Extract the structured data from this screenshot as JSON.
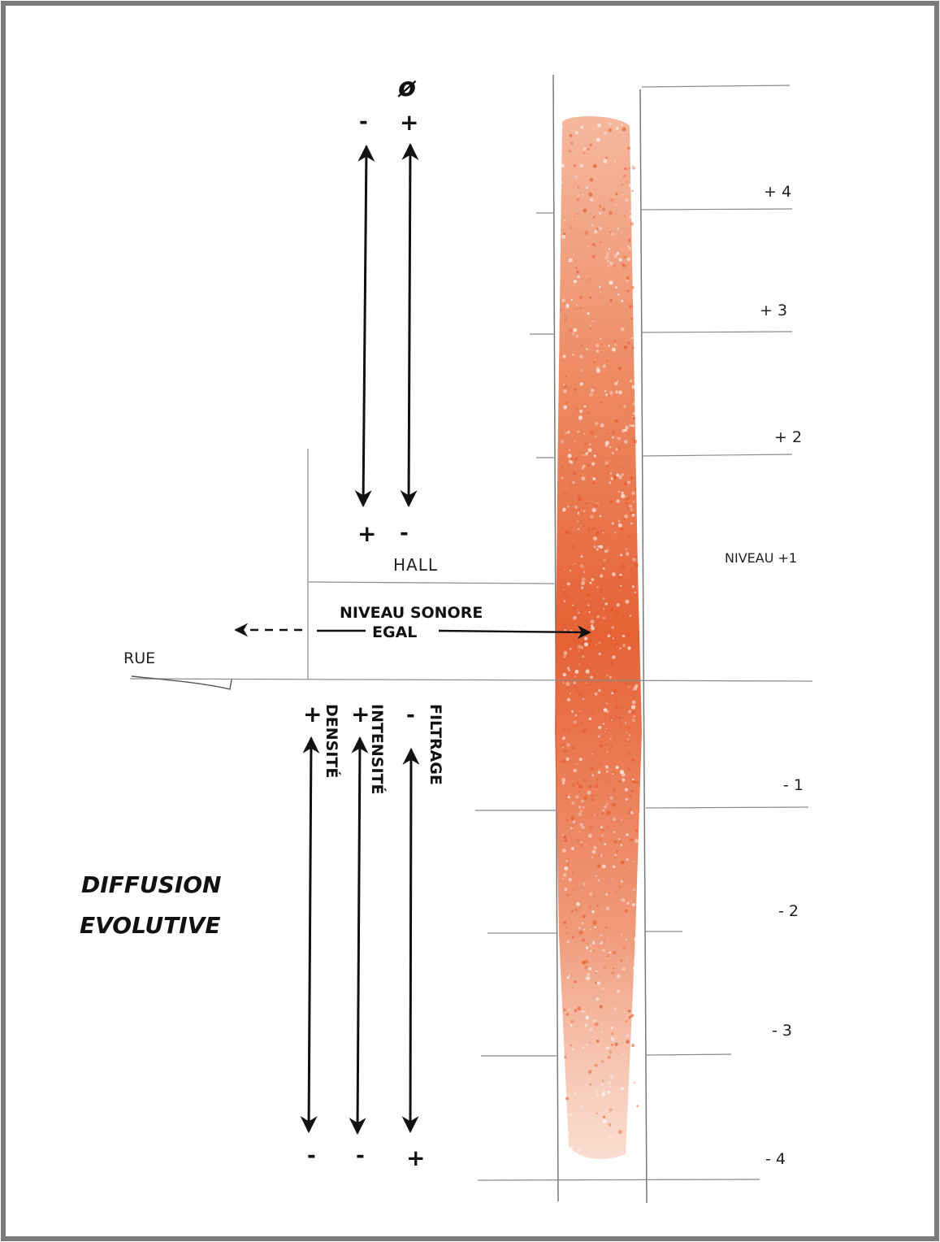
{
  "diagram": {
    "top_symbol": "ø",
    "top_left_sign_top": "-",
    "top_right_sign_top": "+",
    "top_left_sign_bottom": "+",
    "top_right_sign_bottom": "-",
    "hall_label": "HALL",
    "niveau_label_line1": "NIVEAU SONORE",
    "niveau_label_line2": "EGAL",
    "rue_label": "RUE",
    "level_labels": {
      "p4": "+ 4",
      "p3": "+ 3",
      "p2": "+ 2",
      "p1": "NIVEAU +1",
      "m1": "- 1",
      "m2": "- 2",
      "m3": "- 3",
      "m4": "- 4"
    },
    "bottom_signs_top": {
      "densite": "+",
      "intensite": "+",
      "filtrage": "-"
    },
    "bottom_signs_bottom": {
      "densite": "-",
      "intensite": "-",
      "filtrage": "+"
    },
    "vertical_labels": {
      "densite": "DENSITÉ",
      "intensite": "INTENSITÉ",
      "filtrage": "FILTRAGE"
    },
    "diffusion_line1": "DIFFUSION",
    "diffusion_line2": "EVOLUTIVE",
    "colors": {
      "band": "#e4592b",
      "ink": "#111111",
      "grid": "#8a8a8a",
      "frame": "#7a7a7a"
    }
  }
}
